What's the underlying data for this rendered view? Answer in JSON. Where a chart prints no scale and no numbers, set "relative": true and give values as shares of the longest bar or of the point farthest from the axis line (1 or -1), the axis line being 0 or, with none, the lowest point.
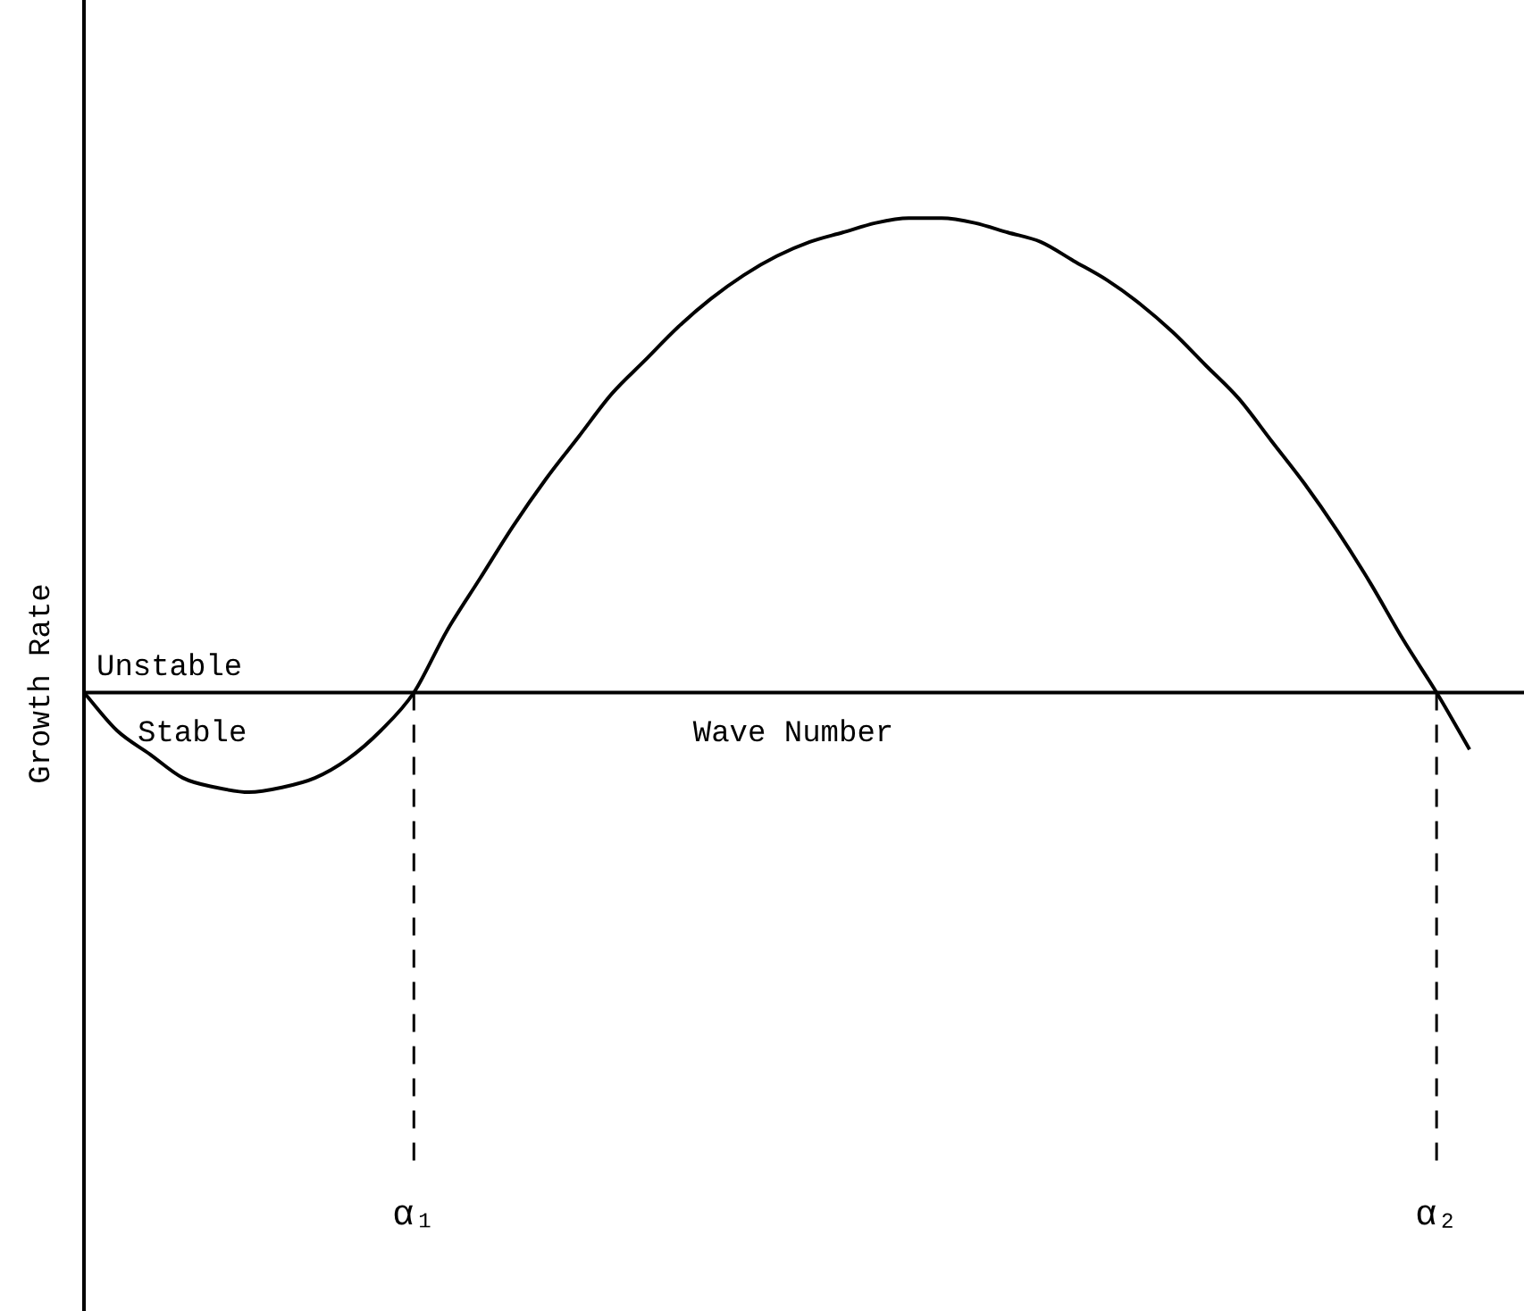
{
  "chart_data": {
    "type": "line",
    "relative": true,
    "xlabel": "Wave Number",
    "ylabel": "Growth Rate",
    "categories": [
      null,
      null,
      null,
      null,
      null,
      null,
      null,
      null,
      null,
      null,
      "α₁",
      null,
      null,
      null,
      null,
      null,
      null,
      null,
      null,
      null,
      null,
      null,
      null,
      null,
      null,
      null,
      null,
      null,
      null,
      null,
      null,
      null,
      null,
      null,
      null,
      null,
      null,
      null,
      null,
      null,
      null,
      "α₂",
      null,
      null
    ],
    "series": [
      {
        "color": "#000000",
        "values": [
          0,
          -0.08,
          -0.13,
          -0.18,
          -0.2,
          -0.21,
          -0.2,
          -0.18,
          -0.14,
          -0.08,
          0,
          0.13,
          0.24,
          0.35,
          0.45,
          0.54,
          0.63,
          0.7,
          0.77,
          0.83,
          0.88,
          0.92,
          0.95,
          0.97,
          0.99,
          1,
          1,
          0.99,
          0.97,
          0.95,
          0.91,
          0.87,
          0.82,
          0.76,
          0.69,
          0.62,
          0.53,
          0.44,
          0.34,
          0.23,
          0.11,
          0,
          -0.12,
          null
        ]
      }
    ],
    "annotations": [
      "Unstable",
      "Stable"
    ],
    "marker": "none",
    "line_style": "solid"
  }
}
